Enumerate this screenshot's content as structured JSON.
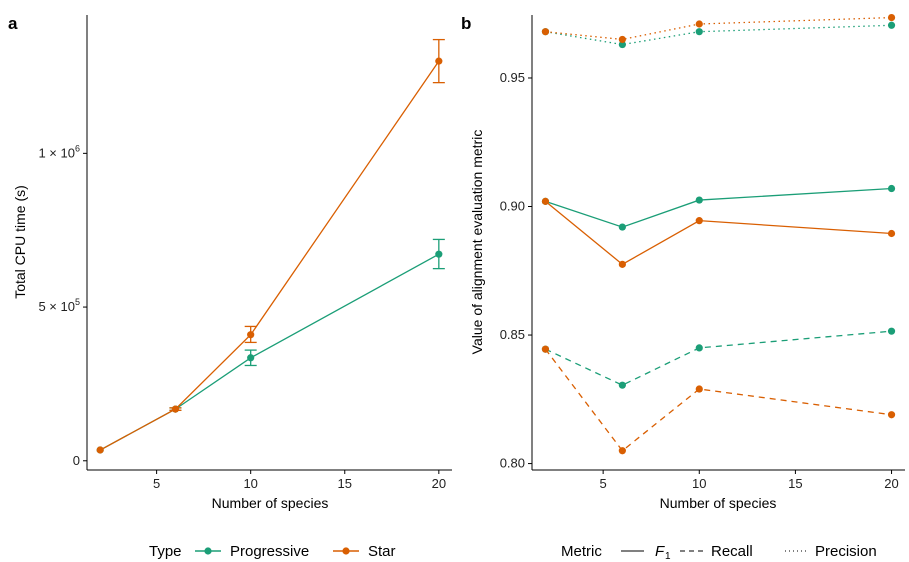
{
  "chart_data": [
    {
      "panel": "a",
      "type": "line",
      "xlabel": "Number of species",
      "ylabel": "Total CPU time (s)",
      "xlim": [
        1.3,
        20.7
      ],
      "ylim": [
        -30000,
        1450000
      ],
      "xticks": [
        5,
        10,
        15,
        20
      ],
      "yticks": [
        0,
        500000,
        1000000
      ],
      "ytick_labels": [
        {
          "base": "0",
          "exp": ""
        },
        {
          "base": "5 × 10",
          "exp": "5"
        },
        {
          "base": "1 × 10",
          "exp": "6"
        }
      ],
      "grid": false,
      "series": [
        {
          "name": "Progressive",
          "color": "#1b9e77",
          "x": [
            2,
            6,
            10,
            20
          ],
          "y": [
            35000,
            168000,
            335000,
            672000
          ],
          "err_low": [
            null,
            164000,
            310000,
            625000
          ],
          "err_high": [
            null,
            172000,
            360000,
            720000
          ]
        },
        {
          "name": "Star",
          "color": "#d95f02",
          "x": [
            2,
            6,
            10,
            20
          ],
          "y": [
            35000,
            168000,
            410000,
            1300000
          ],
          "err_low": [
            null,
            164000,
            385000,
            1230000
          ],
          "err_high": [
            null,
            172000,
            437000,
            1370000
          ]
        }
      ],
      "legend": {
        "title": "Type",
        "position": "bottom",
        "entries": [
          "Progressive",
          "Star"
        ]
      }
    },
    {
      "panel": "b",
      "type": "line",
      "xlabel": "Number of species",
      "ylabel": "Value of alignment evaluation metric",
      "xlim": [
        1.3,
        20.7
      ],
      "ylim": [
        0.7975,
        0.9745
      ],
      "xticks": [
        5,
        10,
        15,
        20
      ],
      "yticks": [
        0.8,
        0.85,
        0.9,
        0.95
      ],
      "ytick_labels": [
        "0.80",
        "0.85",
        "0.90",
        "0.95"
      ],
      "grid": false,
      "series": [
        {
          "type": "Progressive",
          "metric": "F1",
          "color": "#1b9e77",
          "linestyle": "solid",
          "x": [
            2,
            6,
            10,
            20
          ],
          "y": [
            0.902,
            0.892,
            0.9025,
            0.907
          ]
        },
        {
          "type": "Star",
          "metric": "F1",
          "color": "#d95f02",
          "linestyle": "solid",
          "x": [
            2,
            6,
            10,
            20
          ],
          "y": [
            0.902,
            0.8775,
            0.8945,
            0.8895
          ]
        },
        {
          "type": "Progressive",
          "metric": "Recall",
          "color": "#1b9e77",
          "linestyle": "dashed",
          "x": [
            2,
            6,
            10,
            20
          ],
          "y": [
            0.8445,
            0.8305,
            0.845,
            0.8515
          ]
        },
        {
          "type": "Star",
          "metric": "Recall",
          "color": "#d95f02",
          "linestyle": "dashed",
          "x": [
            2,
            6,
            10,
            20
          ],
          "y": [
            0.8445,
            0.805,
            0.829,
            0.819
          ]
        },
        {
          "type": "Progressive",
          "metric": "Precision",
          "color": "#1b9e77",
          "linestyle": "dotted",
          "x": [
            2,
            6,
            10,
            20
          ],
          "y": [
            0.968,
            0.963,
            0.968,
            0.9705
          ]
        },
        {
          "type": "Star",
          "metric": "Precision",
          "color": "#d95f02",
          "linestyle": "dotted",
          "x": [
            2,
            6,
            10,
            20
          ],
          "y": [
            0.968,
            0.965,
            0.971,
            0.9735
          ]
        }
      ],
      "legend": {
        "title": "Metric",
        "position": "bottom",
        "entries": [
          {
            "label": "F",
            "subscript": "1",
            "linestyle": "solid"
          },
          {
            "label": "Recall",
            "linestyle": "dashed"
          },
          {
            "label": "Precision",
            "linestyle": "dotted"
          }
        ]
      }
    }
  ],
  "panel_labels": {
    "a": "a",
    "b": "b"
  },
  "legend_type": {
    "title": "Type",
    "progressive": "Progressive",
    "star": "Star"
  },
  "legend_metric": {
    "title": "Metric",
    "f": "F",
    "f_sub": "1",
    "recall": "Recall",
    "precision": "Precision"
  },
  "colors": {
    "progressive": "#1b9e77",
    "star": "#d95f02"
  }
}
